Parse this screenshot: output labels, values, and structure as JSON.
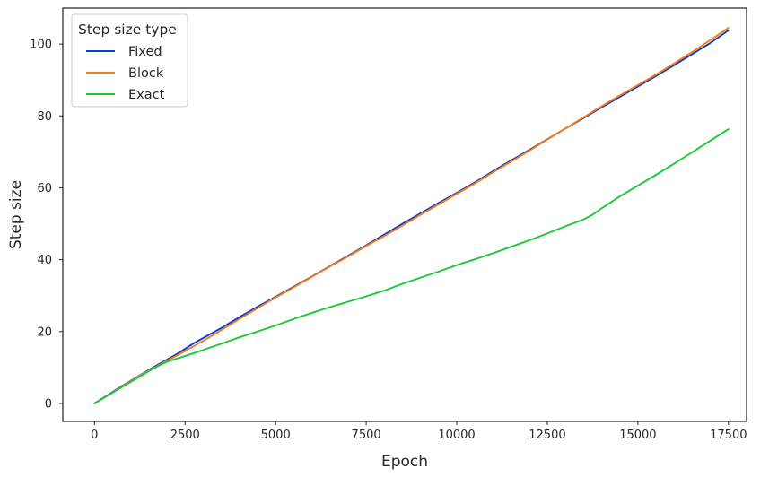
{
  "chart_data": {
    "type": "line",
    "title": "",
    "xlabel": "Epoch",
    "ylabel": "Step size",
    "xlim": [
      -875,
      18000
    ],
    "ylim": [
      -5,
      110
    ],
    "xticks": [
      0,
      2500,
      5000,
      7500,
      10000,
      12500,
      15000,
      17500
    ],
    "xtick_labels": [
      "0",
      "2500",
      "5000",
      "7500",
      "10000",
      "12500",
      "15000",
      "17500"
    ],
    "yticks": [
      0,
      20,
      40,
      60,
      80,
      100
    ],
    "ytick_labels": [
      "0",
      "20",
      "40",
      "60",
      "80",
      "100"
    ],
    "grid": false,
    "legend": {
      "title": "Step size type",
      "position": "top-left"
    },
    "series": [
      {
        "name": "Fixed",
        "color": "#0c3bd6",
        "x": [
          0,
          250,
          500,
          750,
          1000,
          1250,
          1500,
          1750,
          2000,
          2250,
          2500,
          2750,
          3000,
          3500,
          4000,
          4500,
          5000,
          5500,
          6000,
          6500,
          7000,
          7500,
          8000,
          8500,
          9000,
          9500,
          10000,
          10500,
          11000,
          11500,
          12000,
          12500,
          13000,
          13500,
          14000,
          14500,
          15000,
          15500,
          16000,
          16500,
          17000,
          17500
        ],
        "y": [
          0,
          1.6,
          3.2,
          4.8,
          6.3,
          7.8,
          9.3,
          10.8,
          12.2,
          13.6,
          15.2,
          16.8,
          18.2,
          21.0,
          24.0,
          26.9,
          29.7,
          32.5,
          35.3,
          38.2,
          41.1,
          44.0,
          47.0,
          50.0,
          52.9,
          55.8,
          58.6,
          61.5,
          64.6,
          67.6,
          70.5,
          73.5,
          76.5,
          79.4,
          82.4,
          85.3,
          88.2,
          91.1,
          94.1,
          97.2,
          100.3,
          103.8
        ]
      },
      {
        "name": "Block",
        "color": "#f57f16",
        "x": [
          0,
          250,
          500,
          750,
          1000,
          1250,
          1500,
          1750,
          2000,
          2250,
          2500,
          2750,
          3000,
          3500,
          4000,
          4500,
          5000,
          5500,
          6000,
          6500,
          7000,
          7500,
          8000,
          8500,
          9000,
          9500,
          10000,
          10500,
          11000,
          11500,
          12000,
          12500,
          13000,
          13500,
          14000,
          14500,
          15000,
          15500,
          16000,
          16500,
          17000,
          17500
        ],
        "y": [
          0,
          1.5,
          3.1,
          4.7,
          6.2,
          7.7,
          9.1,
          10.5,
          11.9,
          13.2,
          14.6,
          16.0,
          17.4,
          20.4,
          23.5,
          26.5,
          29.5,
          32.3,
          35.2,
          38.1,
          40.9,
          43.8,
          46.6,
          49.5,
          52.5,
          55.4,
          58.3,
          61.2,
          64.3,
          67.3,
          70.3,
          73.4,
          76.5,
          79.6,
          82.7,
          85.7,
          88.6,
          91.5,
          94.6,
          97.8,
          101.1,
          104.5
        ]
      },
      {
        "name": "Exact",
        "color": "#1ac938",
        "x": [
          0,
          250,
          500,
          750,
          1000,
          1250,
          1500,
          1750,
          2000,
          2250,
          2500,
          2750,
          3000,
          3500,
          4000,
          4500,
          5000,
          5500,
          6000,
          6500,
          7000,
          7500,
          8000,
          8500,
          9000,
          9500,
          10000,
          10500,
          11000,
          11500,
          12000,
          12500,
          13000,
          13500,
          13750,
          14000,
          14500,
          15000,
          15500,
          16000,
          16500,
          17000,
          17500
        ],
        "y": [
          0,
          1.5,
          3.0,
          4.5,
          6.0,
          7.5,
          9.0,
          10.4,
          11.6,
          12.4,
          13.2,
          14.0,
          14.9,
          16.6,
          18.4,
          20.0,
          21.7,
          23.5,
          25.2,
          26.8,
          28.3,
          29.8,
          31.4,
          33.3,
          35.0,
          36.7,
          38.5,
          40.1,
          41.8,
          43.6,
          45.4,
          47.3,
          49.3,
          51.2,
          52.5,
          54.3,
          57.6,
          60.6,
          63.6,
          66.7,
          69.9,
          73.1,
          76.3
        ]
      }
    ]
  }
}
